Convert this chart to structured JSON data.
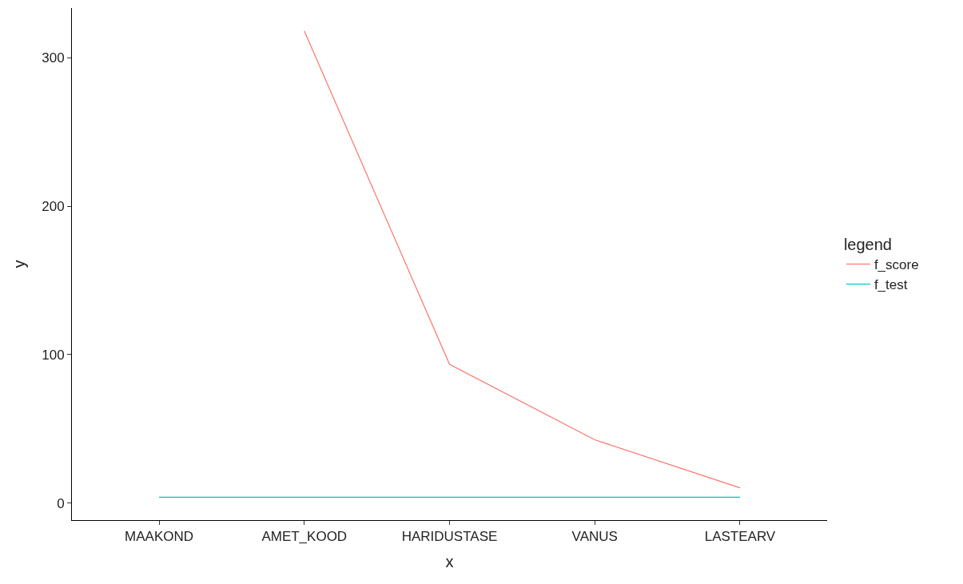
{
  "chart_data": {
    "type": "line",
    "xlabel": "x",
    "ylabel": "y",
    "legend_title": "legend",
    "categories": [
      "MAAKOND",
      "AMET_KOOD",
      "HARIDUSTASE",
      "VANUS",
      "LASTEARV"
    ],
    "series": [
      {
        "name": "f_score",
        "color": "#f8766d",
        "values": [
          null,
          318,
          93.5,
          42.7,
          10.3
        ]
      },
      {
        "name": "f_test",
        "color": "#00bfc4",
        "values": [
          4,
          4,
          4,
          4,
          4
        ]
      }
    ],
    "ylim": [
      -11.4,
      333.5
    ],
    "yticks": [
      0,
      100,
      200,
      300
    ],
    "legend": "right",
    "marker": "none",
    "line_style": "solid"
  }
}
